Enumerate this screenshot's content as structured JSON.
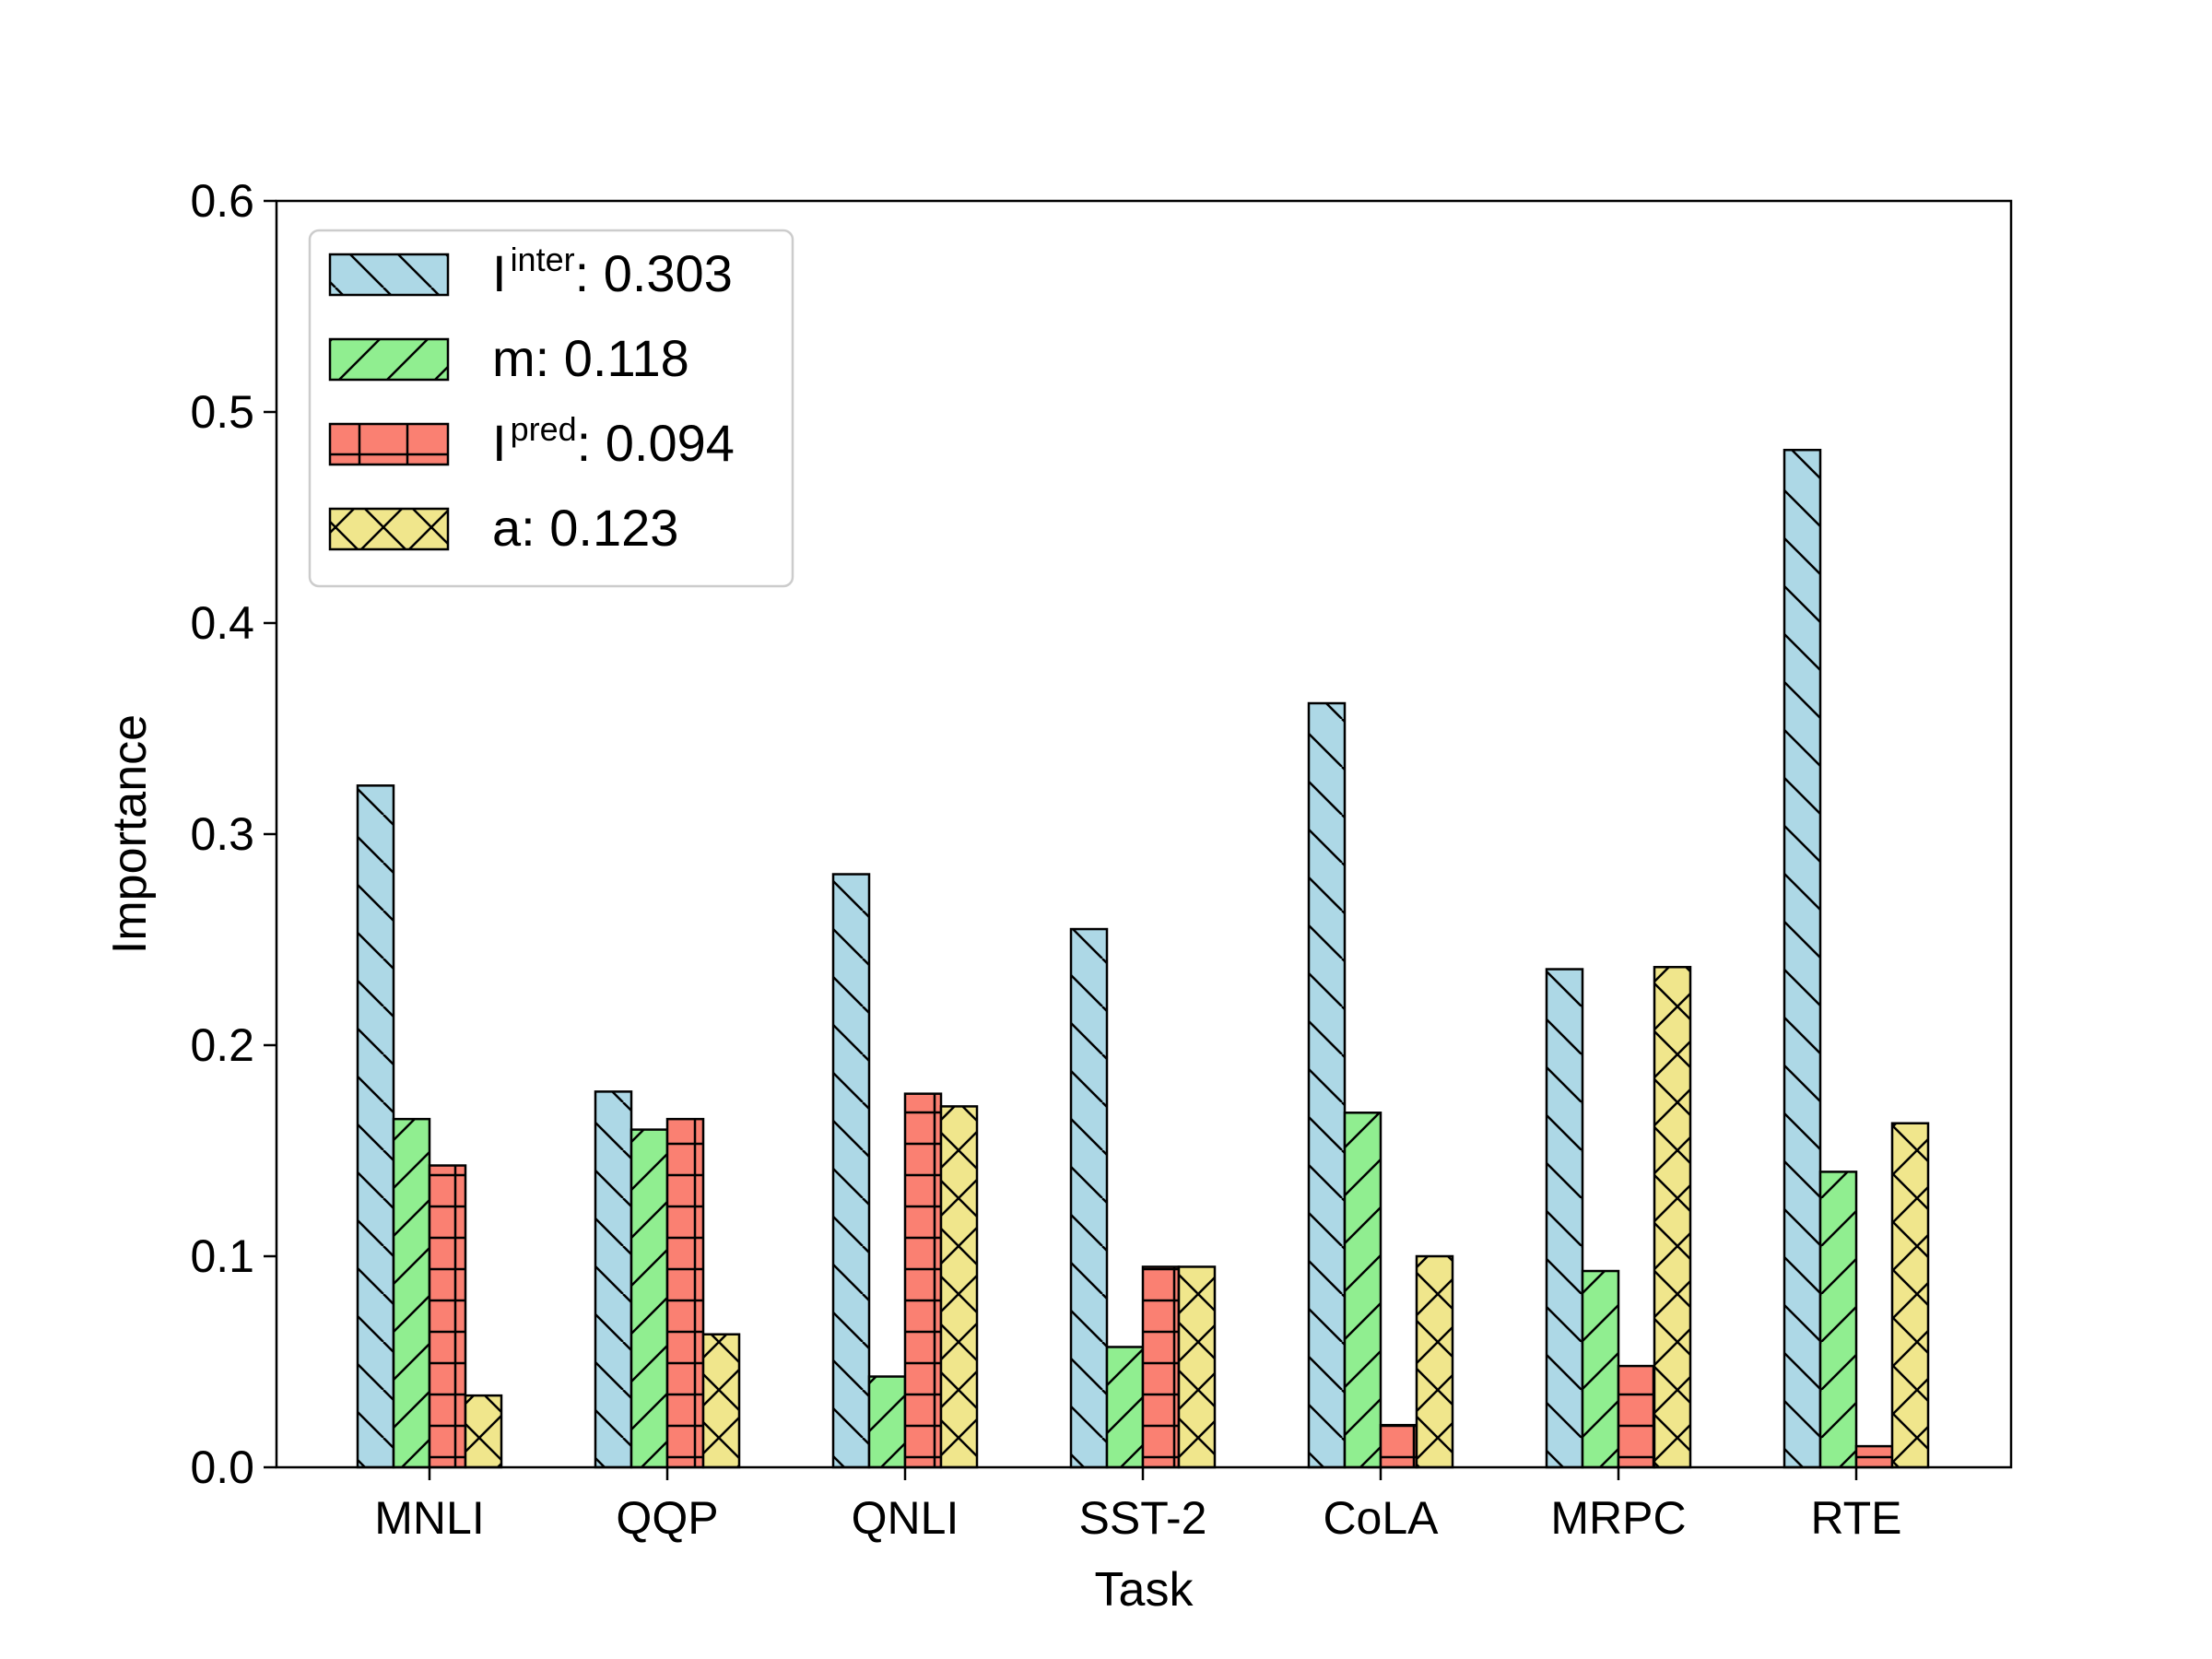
{
  "chart_data": {
    "type": "bar",
    "xlabel": "Task",
    "ylabel": "Importance",
    "ylim": [
      0,
      0.6
    ],
    "yticks": [
      "0.0",
      "0.1",
      "0.2",
      "0.3",
      "0.4",
      "0.5",
      "0.6"
    ],
    "grid": false,
    "legend_position": "top-left",
    "categories": [
      "MNLI",
      "QQP",
      "QNLI",
      "SST-2",
      "CoLA",
      "MRPC",
      "RTE"
    ],
    "series": [
      {
        "legend_base": "I",
        "legend_sup": "inter",
        "legend_value": ": 0.303",
        "color": "#add8e6",
        "hatch": "backslash",
        "values": [
          0.323,
          0.178,
          0.281,
          0.255,
          0.362,
          0.236,
          0.482
        ]
      },
      {
        "legend_base": "m",
        "legend_sup": "",
        "legend_value": ": 0.118",
        "color": "#90ee90",
        "hatch": "slash",
        "values": [
          0.165,
          0.16,
          0.043,
          0.057,
          0.168,
          0.093,
          0.14
        ]
      },
      {
        "legend_base": "I",
        "legend_sup": "pred",
        "legend_value": ": 0.094",
        "color": "#fa8072",
        "hatch": "plus",
        "values": [
          0.143,
          0.165,
          0.177,
          0.095,
          0.02,
          0.048,
          0.01
        ]
      },
      {
        "legend_base": "a",
        "legend_sup": "",
        "legend_value": ": 0.123",
        "color": "#f0e68c",
        "hatch": "cross",
        "values": [
          0.034,
          0.063,
          0.171,
          0.095,
          0.1,
          0.237,
          0.163
        ]
      }
    ]
  }
}
